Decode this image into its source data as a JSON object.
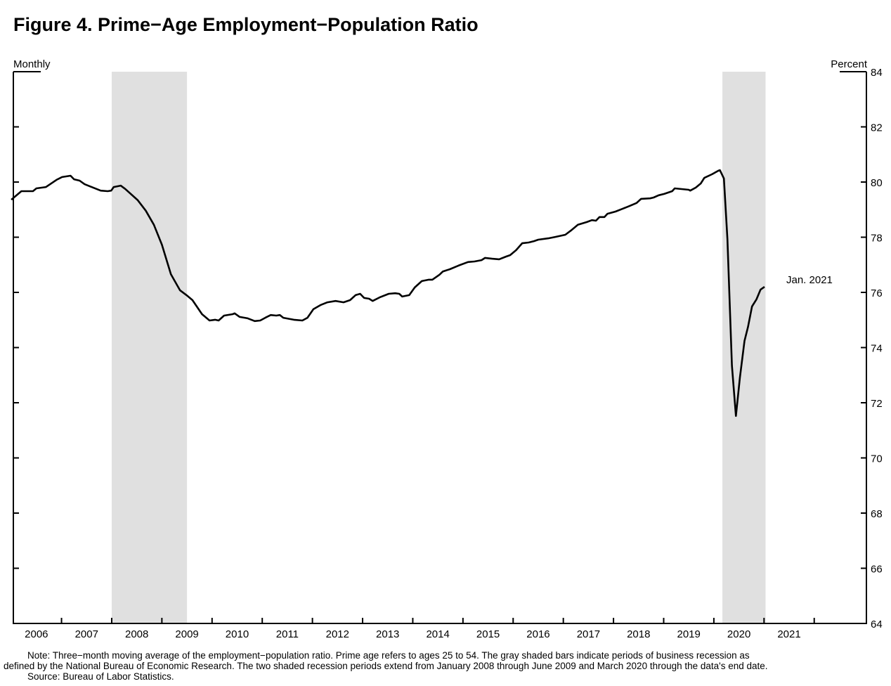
{
  "chart_data": {
    "type": "line",
    "title": "Figure 4. Prime−Age Employment−Population Ratio",
    "xlabel": "Monthly",
    "ylabel": "Percent",
    "xlim": [
      2006.04,
      2023.04
    ],
    "ylim": [
      64,
      84
    ],
    "yticks": [
      64,
      66,
      68,
      70,
      72,
      74,
      76,
      78,
      80,
      82,
      84
    ],
    "xtick_boundaries": [
      2007,
      2008,
      2009,
      2010,
      2011,
      2012,
      2013,
      2014,
      2015,
      2016,
      2017,
      2018,
      2019,
      2020,
      2021,
      2022
    ],
    "xtick_labels": [
      "2006",
      "2007",
      "2008",
      "2009",
      "2010",
      "2011",
      "2012",
      "2013",
      "2014",
      "2015",
      "2016",
      "2017",
      "2018",
      "2019",
      "2020",
      "2021"
    ],
    "grid": false,
    "recessions": [
      [
        2008.0,
        2009.5
      ],
      [
        2020.17,
        2021.03
      ]
    ],
    "annotation": "Jan. 2021",
    "color": "#000000",
    "shade_color": "#e0e0e0",
    "series": [
      {
        "name": "Prime-age employment-population ratio (3-month moving average)",
        "points": [
          [
            2006.0,
            79.36
          ],
          [
            2006.2,
            79.67
          ],
          [
            2006.43,
            79.67
          ],
          [
            2006.5,
            79.77
          ],
          [
            2006.69,
            79.82
          ],
          [
            2006.9,
            80.08
          ],
          [
            2007.01,
            80.18
          ],
          [
            2007.18,
            80.23
          ],
          [
            2007.25,
            80.1
          ],
          [
            2007.36,
            80.05
          ],
          [
            2007.46,
            79.92
          ],
          [
            2007.6,
            79.82
          ],
          [
            2007.78,
            79.69
          ],
          [
            2007.92,
            79.67
          ],
          [
            2007.99,
            79.69
          ],
          [
            2008.04,
            79.82
          ],
          [
            2008.18,
            79.87
          ],
          [
            2008.27,
            79.75
          ],
          [
            2008.52,
            79.34
          ],
          [
            2008.68,
            78.96
          ],
          [
            2008.84,
            78.45
          ],
          [
            2009.0,
            77.73
          ],
          [
            2009.18,
            76.66
          ],
          [
            2009.36,
            76.08
          ],
          [
            2009.49,
            75.9
          ],
          [
            2009.61,
            75.72
          ],
          [
            2009.8,
            75.21
          ],
          [
            2009.95,
            74.98
          ],
          [
            2010.06,
            75.01
          ],
          [
            2010.13,
            74.98
          ],
          [
            2010.24,
            75.16
          ],
          [
            2010.41,
            75.21
          ],
          [
            2010.45,
            75.24
          ],
          [
            2010.55,
            75.11
          ],
          [
            2010.71,
            75.06
          ],
          [
            2010.85,
            74.96
          ],
          [
            2010.96,
            74.98
          ],
          [
            2011.06,
            75.08
          ],
          [
            2011.17,
            75.18
          ],
          [
            2011.28,
            75.16
          ],
          [
            2011.35,
            75.18
          ],
          [
            2011.42,
            75.08
          ],
          [
            2011.63,
            75.01
          ],
          [
            2011.8,
            74.98
          ],
          [
            2011.9,
            75.08
          ],
          [
            2012.02,
            75.39
          ],
          [
            2012.16,
            75.54
          ],
          [
            2012.3,
            75.64
          ],
          [
            2012.46,
            75.69
          ],
          [
            2012.62,
            75.64
          ],
          [
            2012.75,
            75.72
          ],
          [
            2012.86,
            75.9
          ],
          [
            2012.95,
            75.95
          ],
          [
            2013.03,
            75.8
          ],
          [
            2013.13,
            75.77
          ],
          [
            2013.2,
            75.69
          ],
          [
            2013.34,
            75.82
          ],
          [
            2013.52,
            75.95
          ],
          [
            2013.65,
            75.97
          ],
          [
            2013.73,
            75.95
          ],
          [
            2013.79,
            75.85
          ],
          [
            2013.93,
            75.9
          ],
          [
            2014.04,
            76.18
          ],
          [
            2014.18,
            76.41
          ],
          [
            2014.32,
            76.46
          ],
          [
            2014.39,
            76.46
          ],
          [
            2014.53,
            76.64
          ],
          [
            2014.6,
            76.76
          ],
          [
            2014.74,
            76.84
          ],
          [
            2014.91,
            76.97
          ],
          [
            2015.1,
            77.1
          ],
          [
            2015.23,
            77.12
          ],
          [
            2015.37,
            77.17
          ],
          [
            2015.44,
            77.25
          ],
          [
            2015.58,
            77.22
          ],
          [
            2015.72,
            77.2
          ],
          [
            2015.86,
            77.3
          ],
          [
            2015.94,
            77.35
          ],
          [
            2016.06,
            77.53
          ],
          [
            2016.18,
            77.78
          ],
          [
            2016.31,
            77.81
          ],
          [
            2016.42,
            77.86
          ],
          [
            2016.5,
            77.91
          ],
          [
            2016.7,
            77.96
          ],
          [
            2016.84,
            78.01
          ],
          [
            2017.04,
            78.09
          ],
          [
            2017.15,
            78.24
          ],
          [
            2017.29,
            78.45
          ],
          [
            2017.47,
            78.55
          ],
          [
            2017.57,
            78.62
          ],
          [
            2017.65,
            78.6
          ],
          [
            2017.72,
            78.73
          ],
          [
            2017.82,
            78.73
          ],
          [
            2017.88,
            78.85
          ],
          [
            2018.04,
            78.93
          ],
          [
            2018.18,
            79.03
          ],
          [
            2018.32,
            79.13
          ],
          [
            2018.46,
            79.24
          ],
          [
            2018.55,
            79.39
          ],
          [
            2018.73,
            79.41
          ],
          [
            2018.8,
            79.44
          ],
          [
            2018.9,
            79.52
          ],
          [
            2019.01,
            79.57
          ],
          [
            2019.17,
            79.67
          ],
          [
            2019.22,
            79.77
          ],
          [
            2019.5,
            79.72
          ],
          [
            2019.53,
            79.69
          ],
          [
            2019.64,
            79.8
          ],
          [
            2019.74,
            79.95
          ],
          [
            2019.81,
            80.15
          ],
          [
            2019.96,
            80.28
          ],
          [
            2020.09,
            80.41
          ],
          [
            2020.12,
            80.43
          ],
          [
            2020.2,
            80.13
          ],
          [
            2020.27,
            77.94
          ],
          [
            2020.36,
            73.35
          ],
          [
            2020.44,
            71.52
          ],
          [
            2020.52,
            72.92
          ],
          [
            2020.61,
            74.24
          ],
          [
            2020.68,
            74.75
          ],
          [
            2020.76,
            75.49
          ],
          [
            2020.85,
            75.75
          ],
          [
            2020.93,
            76.1
          ],
          [
            2021.01,
            76.2
          ]
        ]
      }
    ],
    "notes": [
      "Note: Three−month moving average of the employment−population ratio. Prime age refers to ages 25 to 54. The gray shaded bars indicate periods of business recession as",
      "defined by the National Bureau of Economic Research. The two shaded recession periods extend from January 2008 through June 2009 and March 2020 through the data's end date.",
      "Source: Bureau of Labor Statistics."
    ]
  }
}
